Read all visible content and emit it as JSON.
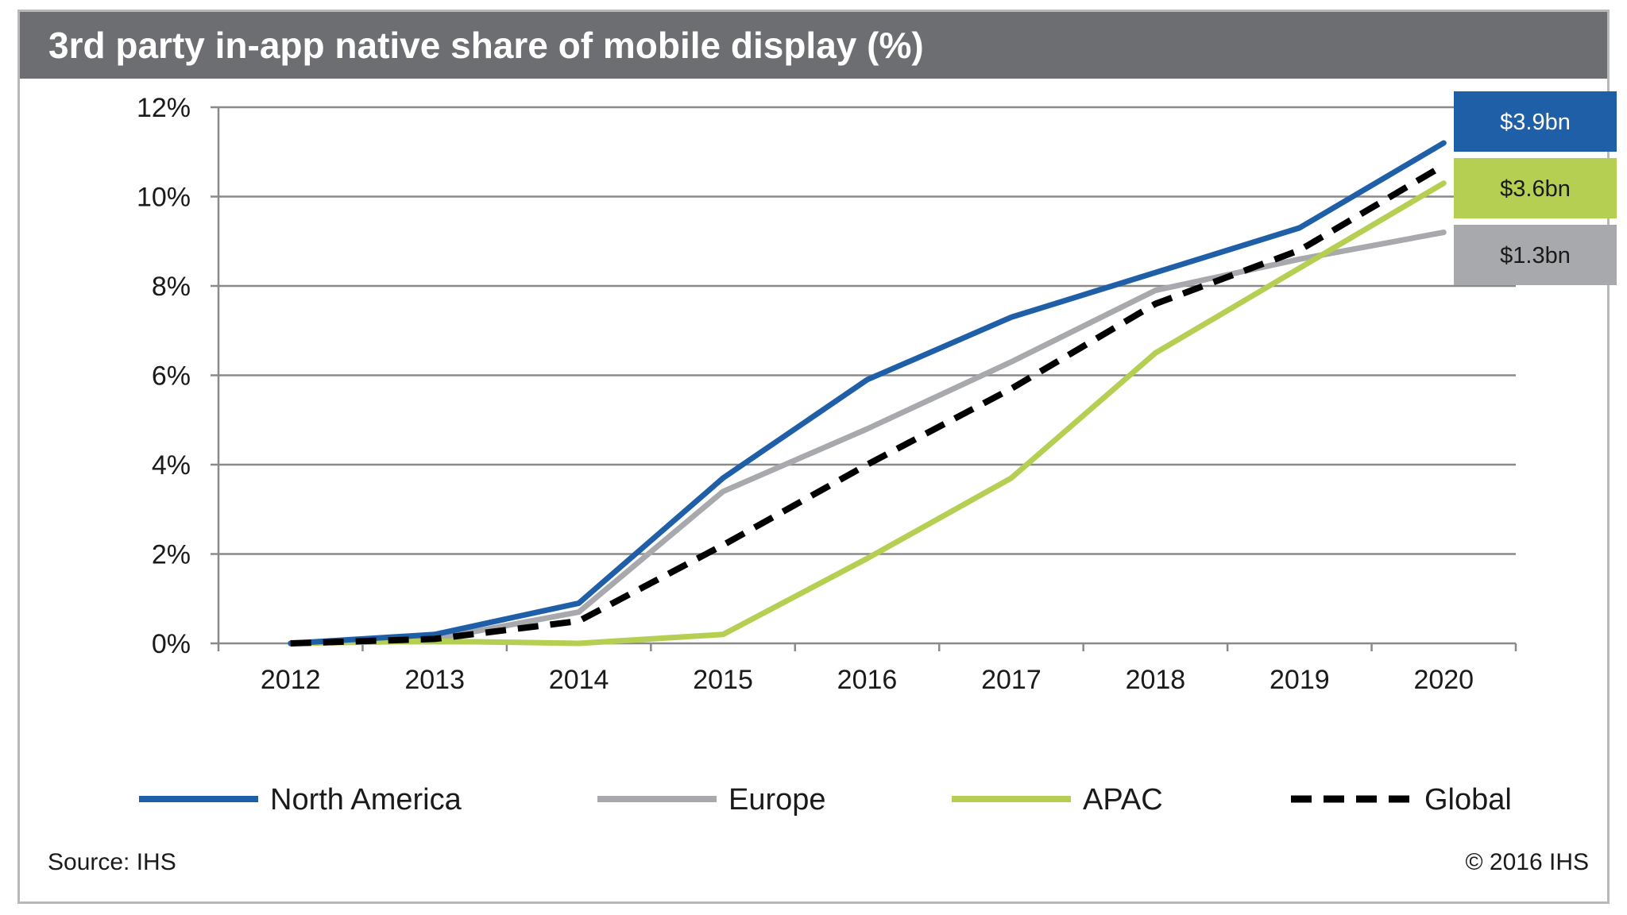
{
  "chart_data": {
    "type": "line",
    "title": "3rd party in-app native share of mobile display (%)",
    "xlabel": "",
    "ylabel": "",
    "categories": [
      "2012",
      "2013",
      "2014",
      "2015",
      "2016",
      "2017",
      "2018",
      "2019",
      "2020"
    ],
    "ylim": [
      0,
      12
    ],
    "yticks": [
      0,
      2,
      4,
      6,
      8,
      10,
      12
    ],
    "ytick_labels": [
      "0%",
      "2%",
      "4%",
      "6%",
      "8%",
      "10%",
      "12%"
    ],
    "grid": true,
    "legend_position": "bottom",
    "series": [
      {
        "name": "North America",
        "values": [
          0,
          0.2,
          0.9,
          3.7,
          5.9,
          7.3,
          8.3,
          9.3,
          11.2
        ],
        "color": "#1f5fa8",
        "dashed": false,
        "callout": "$3.9bn",
        "callout_color": "#1f5fa8",
        "callout_text_color": "#ffffff"
      },
      {
        "name": "Europe",
        "values": [
          0,
          0.1,
          0.7,
          3.4,
          4.8,
          6.3,
          7.9,
          8.6,
          9.2
        ],
        "color": "#a7a9ac",
        "dashed": false,
        "callout": "$1.3bn",
        "callout_color": "#a7a9ac",
        "callout_text_color": "#1a1a1a"
      },
      {
        "name": "APAC",
        "values": [
          0,
          0.05,
          0,
          0.2,
          1.9,
          3.7,
          6.5,
          8.4,
          10.3
        ],
        "color": "#b5cf53",
        "dashed": false,
        "callout": "$3.6bn",
        "callout_color": "#b5cf53",
        "callout_text_color": "#1a1a1a"
      },
      {
        "name": "Global",
        "values": [
          0,
          0.1,
          0.5,
          2.2,
          4.0,
          5.7,
          7.6,
          8.8,
          10.7
        ],
        "color": "#000000",
        "dashed": true
      }
    ]
  },
  "footer": {
    "source": "Source: IHS",
    "copyright": "© 2016 IHS"
  }
}
